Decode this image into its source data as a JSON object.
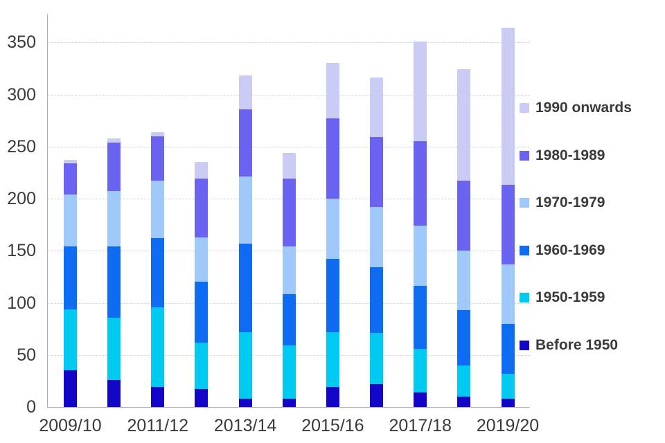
{
  "chart_data": {
    "type": "bar",
    "stacked": true,
    "title": "",
    "xlabel": "",
    "ylabel": "",
    "categories": [
      "2009/10",
      "2010/11",
      "2011/12",
      "2012/13",
      "2013/14",
      "2014/15",
      "2015/16",
      "2016/17",
      "2017/18",
      "2018/19",
      "2019/20"
    ],
    "x_tick_labels_shown": [
      "2009/10",
      "2011/12",
      "2013/14",
      "2015/16",
      "2017/18",
      "2019/20"
    ],
    "series": [
      {
        "name": "Before 1950",
        "color": "#1205c8",
        "values": [
          35,
          26,
          19,
          17,
          8,
          8,
          19,
          22,
          14,
          10,
          8
        ]
      },
      {
        "name": "1950-1959",
        "color": "#00c9f2",
        "values": [
          59,
          60,
          77,
          45,
          64,
          51,
          53,
          49,
          42,
          30,
          24
        ]
      },
      {
        "name": "1960-1969",
        "color": "#0d6cf2",
        "values": [
          60,
          68,
          66,
          58,
          85,
          49,
          70,
          63,
          60,
          53,
          48
        ]
      },
      {
        "name": "1970-1979",
        "color": "#9fc9fb",
        "values": [
          50,
          53,
          55,
          43,
          64,
          46,
          58,
          58,
          58,
          57,
          57
        ]
      },
      {
        "name": "1980-1989",
        "color": "#6a63f1",
        "values": [
          30,
          47,
          43,
          56,
          65,
          65,
          77,
          67,
          81,
          67,
          76
        ]
      },
      {
        "name": "1990 onwards",
        "color": "#cbccf5",
        "values": [
          3,
          4,
          4,
          16,
          32,
          25,
          53,
          57,
          96,
          107,
          151
        ]
      }
    ],
    "bar_totals": [
      237,
      258,
      264,
      235,
      318,
      244,
      330,
      316,
      351,
      324,
      364
    ],
    "y_ticks": [
      0,
      50,
      100,
      150,
      200,
      250,
      300,
      350
    ],
    "ylim": [
      0,
      377
    ],
    "grid": "horizontal-dashed",
    "legend_position": "right-inside",
    "legend_entries_top_to_bottom": [
      "1990 onwards",
      "1980-1989",
      "1970-1979",
      "1960-1969",
      "1950-1959",
      "Before 1950"
    ]
  }
}
